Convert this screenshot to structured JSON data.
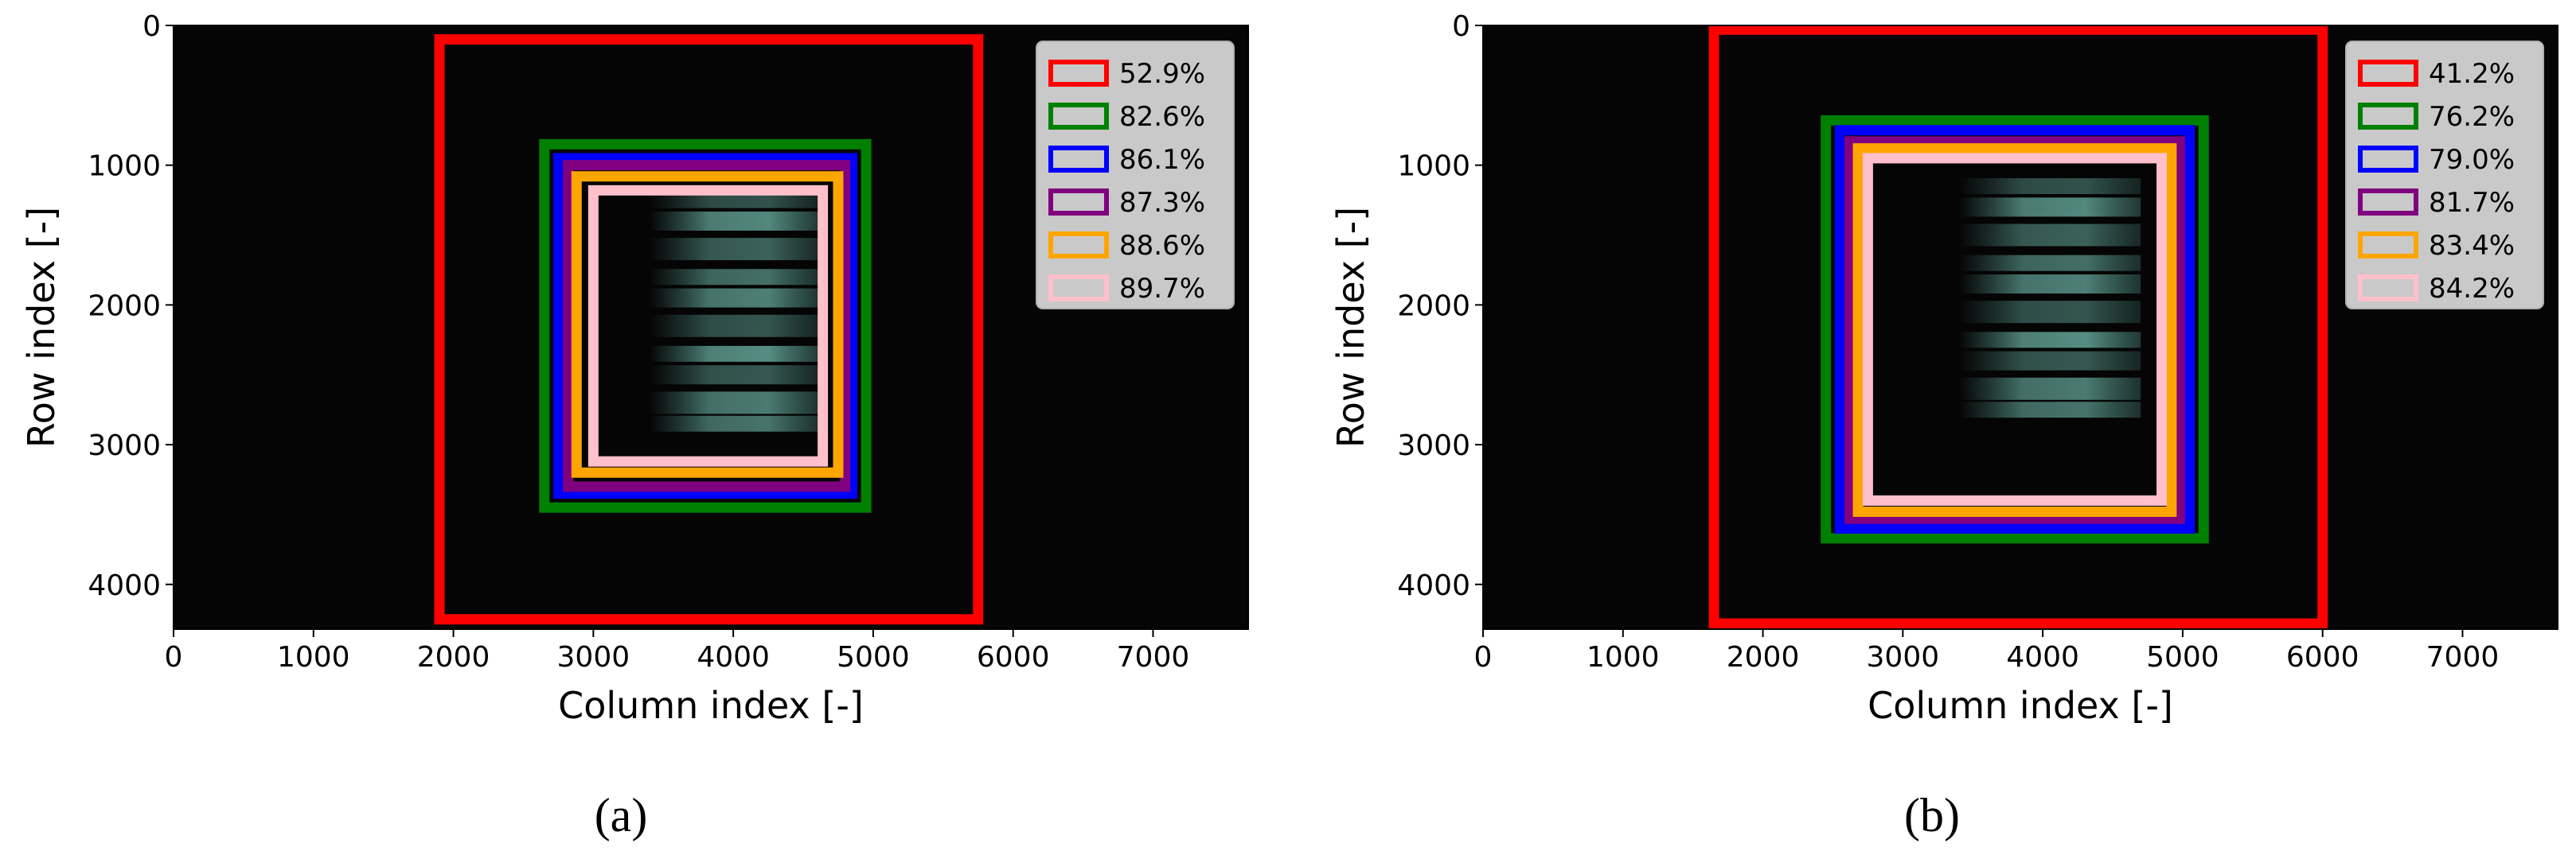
{
  "chart_data": [
    {
      "type": "heatmap",
      "panel_label": "(a)",
      "xlabel": "Column index [-]",
      "ylabel": "Row index [-]",
      "xlim": [
        0,
        7680
      ],
      "ylim": [
        4320,
        0
      ],
      "xticks": [
        0,
        1000,
        2000,
        3000,
        4000,
        5000,
        6000,
        7000
      ],
      "yticks": [
        0,
        1000,
        2000,
        3000,
        4000
      ],
      "legend_position": "upper-right",
      "regions": [
        {
          "label": "52.9%",
          "color": "#ff0000",
          "col_min": 1900,
          "col_max": 5750,
          "row_min": 100,
          "row_max": 4250
        },
        {
          "label": "82.6%",
          "color": "#008000",
          "col_min": 2650,
          "col_max": 4950,
          "row_min": 850,
          "row_max": 3450
        },
        {
          "label": "86.1%",
          "color": "#0000ff",
          "col_min": 2750,
          "col_max": 4850,
          "row_min": 950,
          "row_max": 3350
        },
        {
          "label": "87.3%",
          "color": "#800080",
          "col_min": 2820,
          "col_max": 4800,
          "row_min": 1000,
          "row_max": 3300
        },
        {
          "label": "88.6%",
          "color": "#ffa500",
          "col_min": 2880,
          "col_max": 4750,
          "row_min": 1080,
          "row_max": 3200
        },
        {
          "label": "89.7%",
          "color": "#ffc0cb",
          "col_min": 3000,
          "col_max": 4640,
          "row_min": 1180,
          "row_max": 3120
        }
      ],
      "signal_rows": [
        1250,
        1400,
        1600,
        1800,
        1950,
        2150,
        2350,
        2500,
        2700,
        2850
      ],
      "signal_cols": [
        3400,
        4620
      ]
    },
    {
      "type": "heatmap",
      "panel_label": "(b)",
      "xlabel": "Column index [-]",
      "ylabel": "Row index [-]",
      "xlim": [
        0,
        7680
      ],
      "ylim": [
        4320,
        0
      ],
      "xticks": [
        0,
        1000,
        2000,
        3000,
        4000,
        5000,
        6000,
        7000
      ],
      "yticks": [
        0,
        1000,
        2000,
        3000,
        4000
      ],
      "legend_position": "upper-right",
      "regions": [
        {
          "label": "41.2%",
          "color": "#ff0000",
          "col_min": 1650,
          "col_max": 6000,
          "row_min": 30,
          "row_max": 4280
        },
        {
          "label": "76.2%",
          "color": "#008000",
          "col_min": 2450,
          "col_max": 5150,
          "row_min": 680,
          "row_max": 3670
        },
        {
          "label": "79.0%",
          "color": "#0000ff",
          "col_min": 2550,
          "col_max": 5050,
          "row_min": 750,
          "row_max": 3600
        },
        {
          "label": "81.7%",
          "color": "#800080",
          "col_min": 2620,
          "col_max": 4980,
          "row_min": 830,
          "row_max": 3530
        },
        {
          "label": "83.4%",
          "color": "#ffa500",
          "col_min": 2680,
          "col_max": 4920,
          "row_min": 880,
          "row_max": 3480
        },
        {
          "label": "84.2%",
          "color": "#ffc0cb",
          "col_min": 2750,
          "col_max": 4850,
          "row_min": 950,
          "row_max": 3400
        }
      ],
      "signal_rows": [
        1150,
        1300,
        1500,
        1700,
        1850,
        2050,
        2250,
        2400,
        2600,
        2750
      ],
      "signal_cols": [
        3400,
        4700
      ]
    }
  ]
}
